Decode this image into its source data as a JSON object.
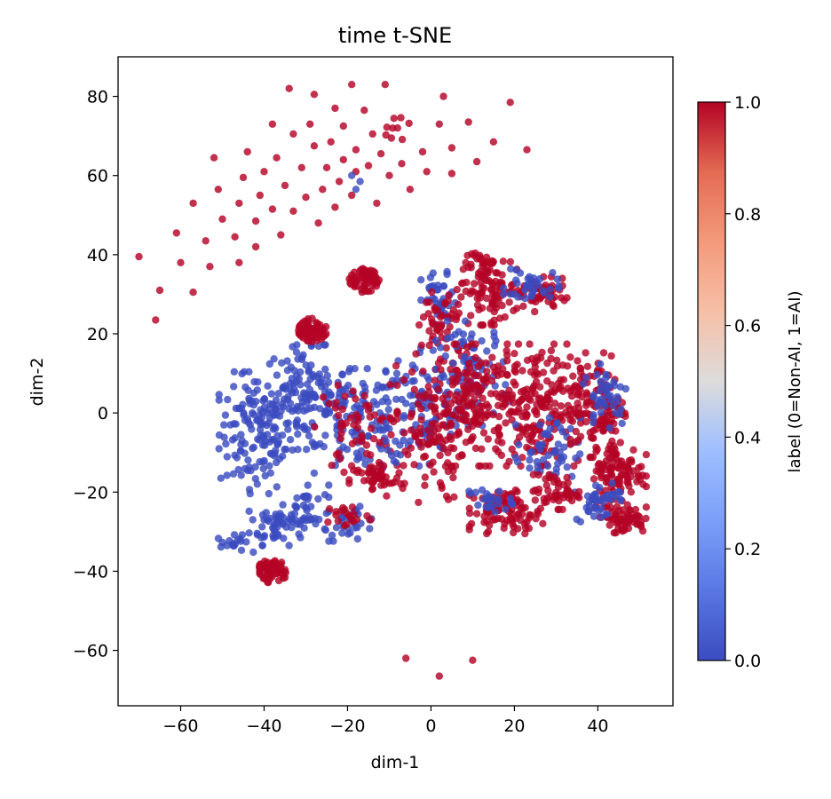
{
  "chart_data": {
    "type": "scatter",
    "title": "time t-SNE",
    "xlabel": "dim-1",
    "ylabel": "dim-2",
    "xlim": [
      -75,
      58
    ],
    "ylim": [
      -74,
      90
    ],
    "xticks": [
      -60,
      -40,
      -20,
      0,
      20,
      40
    ],
    "yticks": [
      -60,
      -40,
      -20,
      0,
      20,
      40,
      60,
      80
    ],
    "xtick_labels": [
      "−60",
      "−40",
      "−20",
      "0",
      "20",
      "40"
    ],
    "ytick_labels": [
      "−60",
      "−40",
      "−20",
      "0",
      "20",
      "40",
      "60",
      "80"
    ],
    "grid": false,
    "colormap": "coolwarm",
    "colors": {
      "label_0": "#3b4cc0",
      "label_1": "#b40426"
    },
    "colorbar": {
      "label": "label (0=Non-AI, 1=AI)",
      "range": [
        0.0,
        1.0
      ],
      "ticks": [
        0.0,
        0.2,
        0.4,
        0.6,
        0.8,
        1.0
      ],
      "tick_labels": [
        "0.0",
        "0.2",
        "0.4",
        "0.6",
        "0.8",
        "1.0"
      ]
    },
    "top_arc_points": [
      [
        -70,
        39.5
      ],
      [
        -66,
        23.5
      ],
      [
        -65,
        31
      ],
      [
        -61,
        45.5
      ],
      [
        -60,
        38
      ],
      [
        -57,
        30.5
      ],
      [
        -57,
        53
      ],
      [
        -54,
        43.5
      ],
      [
        -53,
        37
      ],
      [
        -52,
        64.5
      ],
      [
        -51,
        56.5
      ],
      [
        -50,
        49
      ],
      [
        -47,
        44.5
      ],
      [
        -46,
        38
      ],
      [
        -46,
        53
      ],
      [
        -45,
        59.5
      ],
      [
        -44,
        66
      ],
      [
        -42,
        48.5
      ],
      [
        -42,
        42
      ],
      [
        -41,
        55
      ],
      [
        -40,
        61
      ],
      [
        -38,
        73
      ],
      [
        -38,
        51.5
      ],
      [
        -37,
        64.5
      ],
      [
        -36,
        45
      ],
      [
        -35,
        57.5
      ],
      [
        -34,
        82
      ],
      [
        -33,
        70.5
      ],
      [
        -33,
        51
      ],
      [
        -31,
        62
      ],
      [
        -30,
        54.5
      ],
      [
        -29,
        73
      ],
      [
        -28,
        80.5
      ],
      [
        -28,
        67.5
      ],
      [
        -27,
        48
      ],
      [
        -26,
        56.5
      ],
      [
        -25,
        62
      ],
      [
        -24,
        68.5
      ],
      [
        -23,
        52
      ],
      [
        -23,
        77
      ],
      [
        -22,
        58.5
      ],
      [
        -21,
        64
      ],
      [
        -21,
        72.5
      ],
      [
        -19,
        83
      ],
      [
        -19,
        55
      ],
      [
        -18,
        61
      ],
      [
        -18,
        66.5
      ],
      [
        -16,
        76.5
      ],
      [
        -15,
        62.5
      ],
      [
        -14,
        70.5
      ],
      [
        -13,
        53
      ],
      [
        -12,
        65.5
      ],
      [
        -11,
        83
      ],
      [
        -10,
        60
      ],
      [
        -8,
        72
      ],
      [
        -7,
        63
      ],
      [
        -5,
        56.5
      ],
      [
        -2,
        66
      ],
      [
        -1,
        61
      ],
      [
        2,
        73
      ],
      [
        3,
        80
      ],
      [
        5,
        67
      ],
      [
        5,
        60.5
      ],
      [
        9,
        73.5
      ],
      [
        11,
        63.5
      ],
      [
        15,
        68.5
      ],
      [
        19,
        78.5
      ],
      [
        23,
        66.5
      ],
      [
        -6,
        -62
      ],
      [
        2,
        -66.5
      ],
      [
        10,
        -62.5
      ]
    ],
    "blue_in_arc": [
      [
        -19,
        60
      ],
      [
        -18,
        56.5
      ],
      [
        -17,
        58.5
      ]
    ],
    "dense_red_clusters": [
      {
        "cx": -38,
        "cy": -40,
        "n": 60
      },
      {
        "cx": -28.5,
        "cy": 21,
        "n": 60
      },
      {
        "cx": -16,
        "cy": 33.5,
        "n": 60
      },
      {
        "cx": 12,
        "cy": 38,
        "n": 20
      },
      {
        "cx": -8,
        "cy": 72,
        "n": 8
      }
    ],
    "regions": [
      {
        "label": 0,
        "cx": -42,
        "cy": -5,
        "rx": 8,
        "ry": 14,
        "n": 140
      },
      {
        "label": 0,
        "cx": -37,
        "cy": -28,
        "rx": 6,
        "ry": 5,
        "n": 50
      },
      {
        "label": 0,
        "cx": -47,
        "cy": -33,
        "rx": 4,
        "ry": 2,
        "n": 18
      },
      {
        "label": 0,
        "cx": -30,
        "cy": -24,
        "rx": 5,
        "ry": 6,
        "n": 40
      },
      {
        "label": 0,
        "cx": -30,
        "cy": 4,
        "rx": 9,
        "ry": 12,
        "n": 130
      },
      {
        "label": 0,
        "cx": -17,
        "cy": -2,
        "rx": 10,
        "ry": 12,
        "n": 110
      },
      {
        "label": 0,
        "cx": -19,
        "cy": -28,
        "rx": 6,
        "ry": 4,
        "n": 30
      },
      {
        "label": 1,
        "cx": -18,
        "cy": -4,
        "rx": 9,
        "ry": 10,
        "n": 60
      },
      {
        "label": 1,
        "cx": -13,
        "cy": -17,
        "rx": 6,
        "ry": 4,
        "n": 45
      },
      {
        "label": 1,
        "cx": -20,
        "cy": -26,
        "rx": 5,
        "ry": 3,
        "n": 20
      },
      {
        "label": 0,
        "cx": -2,
        "cy": 2,
        "rx": 8,
        "ry": 14,
        "n": 90
      },
      {
        "label": 1,
        "cx": -1,
        "cy": -5,
        "rx": 8,
        "ry": 16,
        "n": 110
      },
      {
        "label": 0,
        "cx": 2,
        "cy": 28,
        "rx": 4,
        "ry": 7,
        "n": 40
      },
      {
        "label": 1,
        "cx": 3,
        "cy": 22,
        "rx": 6,
        "ry": 10,
        "n": 60
      },
      {
        "label": 1,
        "cx": 14,
        "cy": 31,
        "rx": 6,
        "ry": 8,
        "n": 90
      },
      {
        "label": 0,
        "cx": 10,
        "cy": 10,
        "rx": 8,
        "ry": 12,
        "n": 80
      },
      {
        "label": 1,
        "cx": 12,
        "cy": 2,
        "rx": 10,
        "ry": 14,
        "n": 170
      },
      {
        "label": 1,
        "cx": 26,
        "cy": 30,
        "rx": 6,
        "ry": 4,
        "n": 60
      },
      {
        "label": 0,
        "cx": 24,
        "cy": 32,
        "rx": 6,
        "ry": 4,
        "n": 35
      },
      {
        "label": 1,
        "cx": 26,
        "cy": 2,
        "rx": 9,
        "ry": 14,
        "n": 170
      },
      {
        "label": 0,
        "cx": 28,
        "cy": -10,
        "rx": 7,
        "ry": 8,
        "n": 50
      },
      {
        "label": 1,
        "cx": 40,
        "cy": 2,
        "rx": 6,
        "ry": 12,
        "n": 120
      },
      {
        "label": 0,
        "cx": 42,
        "cy": 5,
        "rx": 5,
        "ry": 8,
        "n": 40
      },
      {
        "label": 1,
        "cx": 45,
        "cy": -15,
        "rx": 6,
        "ry": 8,
        "n": 110
      },
      {
        "label": 1,
        "cx": 46,
        "cy": -27,
        "rx": 5,
        "ry": 3,
        "n": 60
      },
      {
        "label": 0,
        "cx": 40,
        "cy": -22,
        "rx": 5,
        "ry": 5,
        "n": 40
      },
      {
        "label": 1,
        "cx": 18,
        "cy": -25,
        "rx": 8,
        "ry": 5,
        "n": 90
      },
      {
        "label": 0,
        "cx": 14,
        "cy": -22,
        "rx": 5,
        "ry": 3,
        "n": 25
      },
      {
        "label": 1,
        "cx": 30,
        "cy": -20,
        "rx": 5,
        "ry": 4,
        "n": 50
      }
    ]
  }
}
